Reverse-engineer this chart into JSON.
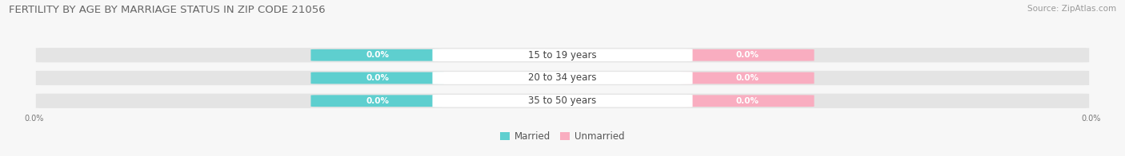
{
  "title": "FERTILITY BY AGE BY MARRIAGE STATUS IN ZIP CODE 21056",
  "source": "Source: ZipAtlas.com",
  "categories": [
    "15 to 19 years",
    "20 to 34 years",
    "35 to 50 years"
  ],
  "married_values": [
    0.0,
    0.0,
    0.0
  ],
  "unmarried_values": [
    0.0,
    0.0,
    0.0
  ],
  "married_color": "#5ecfcf",
  "unmarried_color": "#f9adc0",
  "bar_bg_color": "#e4e4e4",
  "background_color": "#f7f7f7",
  "title_fontsize": 9.5,
  "source_fontsize": 7.5,
  "label_fontsize": 8.5,
  "value_fontsize": 7.5,
  "legend_married": "Married",
  "legend_unmarried": "Unmarried",
  "xlim_left_label": "0.0%",
  "xlim_right_label": "0.0%"
}
